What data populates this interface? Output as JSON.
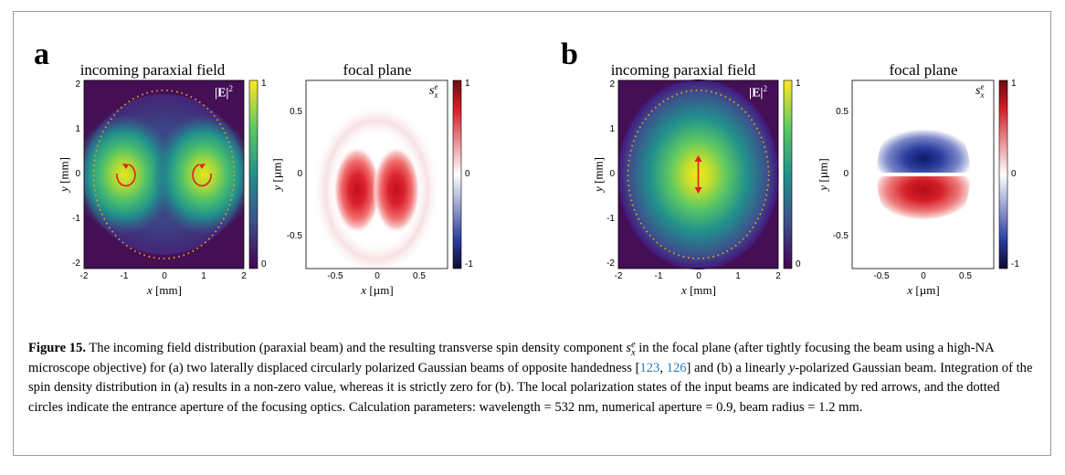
{
  "figure": {
    "panels": [
      {
        "letter": "a",
        "plots": [
          {
            "title": "incoming paraxial field",
            "kind": "intensity",
            "inset_label": "|E|",
            "inset_sup": "2",
            "x_ticks": [
              "-2",
              "-1",
              "0",
              "1",
              "2"
            ],
            "y_ticks": [
              "2",
              "1",
              "0",
              "-1",
              "-2"
            ],
            "x_label": "x",
            "x_unit": " [mm]",
            "y_label": "y",
            "y_unit": " [mm]",
            "cb_ticks": [
              "1",
              "0"
            ],
            "colormap": "viridis",
            "aperture_color": "#f0a020",
            "arrow_color": "#e02020",
            "beams": "two circularly polarized spots at x = -1 and x = 1, opposite handedness"
          },
          {
            "title": "focal plane",
            "kind": "spin",
            "inset_label": "s",
            "inset_sub": "x",
            "inset_sup": "e",
            "x_ticks": [
              "-0.5",
              "0",
              "0.5"
            ],
            "y_ticks": [
              "0.5",
              "0",
              "-0.5"
            ],
            "x_label": "x",
            "x_unit": " [µm]",
            "y_label": "y",
            "y_unit": " [µm]",
            "cb_ticks": [
              "1",
              "0",
              "-1"
            ],
            "colormap": "red-white-blue"
          }
        ]
      },
      {
        "letter": "b",
        "plots": [
          {
            "title": "incoming paraxial field",
            "kind": "intensity",
            "inset_label": "|E|",
            "inset_sup": "2",
            "x_ticks": [
              "-2",
              "-1",
              "0",
              "1",
              "2"
            ],
            "y_ticks": [
              "2",
              "1",
              "0",
              "-1",
              "-2"
            ],
            "x_label": "x",
            "x_unit": " [mm]",
            "y_label": "y",
            "y_unit": " [mm]",
            "cb_ticks": [
              "1",
              "0"
            ],
            "colormap": "viridis",
            "aperture_color": "#f0a020",
            "arrow_color": "#e02020",
            "beams": "single linearly y-polarized spot at center"
          },
          {
            "title": "focal plane",
            "kind": "spin",
            "inset_label": "s",
            "inset_sub": "x",
            "inset_sup": "e",
            "x_ticks": [
              "-0.5",
              "0",
              "0.5"
            ],
            "y_ticks": [
              "0.5",
              "0",
              "-0.5"
            ],
            "x_label": "x",
            "x_unit": " [µm]",
            "y_label": "y",
            "y_unit": " [µm]",
            "cb_ticks": [
              "1",
              "0",
              "-1"
            ],
            "colormap": "red-white-blue"
          }
        ]
      }
    ]
  },
  "caption": {
    "label": "Figure 15.",
    "t1": " The incoming field distribution (paraxial beam) and the resulting transverse spin density component ",
    "sym": "s",
    "sym_sub": "x",
    "sym_sup": "e",
    "t2": " in the focal plane (after tightly focusing the beam using a high-NA microscope objective) for (a) two laterally displaced circularly polarized Gaussian beams of opposite handedness [",
    "ref1": "123",
    "sep": ", ",
    "ref2": "126",
    "t3": "] and (b) a linearly ",
    "ital_y": "y",
    "t4": "-polarized Gaussian beam. Integration of the spin density distribution in (a) results in a non-zero value, whereas it is strictly zero for (b). The local polarization states of the input beams are indicated by red arrows, and the dotted circles indicate the entrance aperture of the focusing optics. Calculation parameters: wavelength = 532 nm, numerical aperture = 0.9, beam radius = 1.2 mm."
  }
}
